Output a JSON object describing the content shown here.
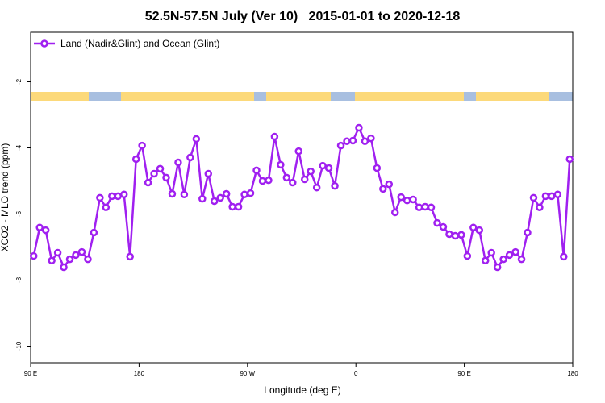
{
  "chart_data": {
    "type": "line",
    "title": "52.5N-57.5N July (Ver 10)   2015-01-01 to 2020-12-18",
    "x_label": "Longitude (deg E)",
    "y_label": "XCO2 - MLO trend (ppm)",
    "xlim": [
      90,
      540
    ],
    "ylim": [
      -10.5,
      -0.5
    ],
    "xticks": [
      {
        "value": 90,
        "label": "90 E"
      },
      180,
      {
        "value": 270,
        "label": "90 W"
      },
      {
        "value": 360,
        "label": "0"
      },
      {
        "value": 450,
        "label": "90 E"
      },
      {
        "value": 540,
        "label": "180"
      }
    ],
    "yticks": [
      -10,
      -8,
      -6,
      -4,
      -2
    ],
    "legend": "top-left",
    "series": [
      {
        "name": "Land (Nadir&Glint) and Ocean (Glint)",
        "color": "#a020f0",
        "x": [
          92.5,
          97.5,
          102.5,
          107.5,
          112.5,
          117.5,
          122.5,
          127.5,
          132.5,
          137.5,
          142.5,
          147.5,
          152.5,
          157.5,
          162.5,
          167.5,
          172.5,
          177.5,
          182.5,
          187.5,
          192.5,
          197.5,
          202.5,
          207.5,
          212.5,
          217.5,
          222.5,
          227.5,
          232.5,
          237.5,
          242.5,
          247.5,
          252.5,
          257.5,
          262.5,
          267.5,
          272.5,
          277.5,
          282.5,
          287.5,
          292.5,
          297.5,
          302.5,
          307.5,
          312.5,
          317.5,
          322.5,
          327.5,
          332.5,
          337.5,
          342.5,
          347.5,
          352.5,
          357.5,
          362.5,
          367.5,
          372.5,
          377.5,
          382.5,
          387.5,
          392.5,
          397.5,
          402.5,
          407.5,
          412.5,
          417.5,
          422.5,
          427.5,
          432.5,
          437.5,
          442.5,
          447.5,
          452.5,
          457.5,
          462.5,
          467.5,
          472.5,
          477.5,
          482.5,
          487.5,
          492.5,
          497.5,
          502.5,
          507.5,
          512.5,
          517.5,
          522.5,
          527.5,
          532.5,
          537.5
        ],
        "values": [
          -7.27,
          -6.41,
          -6.49,
          -7.41,
          -7.17,
          -7.61,
          -7.37,
          -7.24,
          -7.15,
          -7.37,
          -6.56,
          -5.51,
          -5.8,
          -5.46,
          -5.46,
          -5.41,
          -7.29,
          -4.34,
          -3.93,
          -5.05,
          -4.78,
          -4.63,
          -4.9,
          -5.39,
          -4.44,
          -5.41,
          -4.29,
          -3.73,
          -5.54,
          -4.78,
          -5.61,
          -5.51,
          -5.39,
          -5.78,
          -5.78,
          -5.41,
          -5.37,
          -4.68,
          -5.0,
          -4.98,
          -3.66,
          -4.51,
          -4.9,
          -5.05,
          -4.1,
          -4.95,
          -4.71,
          -5.2,
          -4.54,
          -4.61,
          -5.15,
          -3.93,
          -3.8,
          -3.78,
          -3.39,
          -3.8,
          -3.71,
          -4.61,
          -5.24,
          -5.1,
          -5.95,
          -5.49,
          -5.59,
          -5.56,
          -5.8,
          -5.78,
          -5.8,
          -6.27,
          -6.39,
          -6.61,
          -6.66,
          -6.63,
          -7.27,
          -6.41,
          -6.49,
          -7.41,
          -7.17,
          -7.61,
          -7.37,
          -7.24,
          -7.15,
          -7.37,
          -6.56,
          -5.51,
          -5.8,
          -5.46,
          -5.46,
          -5.41,
          -7.29,
          -4.34
        ]
      }
    ]
  }
}
